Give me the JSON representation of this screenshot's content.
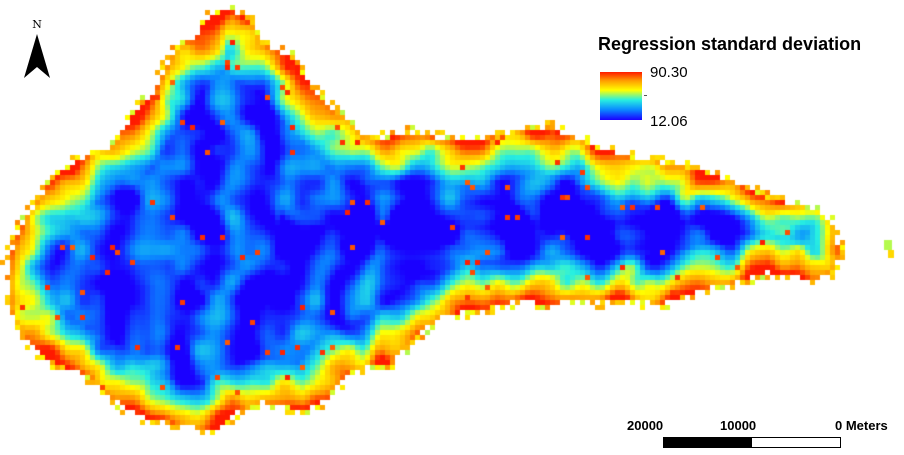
{
  "map": {
    "north_label": "N",
    "legend": {
      "title": "Regression standard deviation",
      "max_label": "90.30",
      "min_label": "12.06",
      "colors": [
        "#ff1a00",
        "#ff9d00",
        "#ffff00",
        "#28f0e0",
        "#0a8cff",
        "#1a00ff"
      ]
    },
    "scale": {
      "labels": [
        "20000",
        "10000",
        "0 Meters"
      ]
    }
  }
}
